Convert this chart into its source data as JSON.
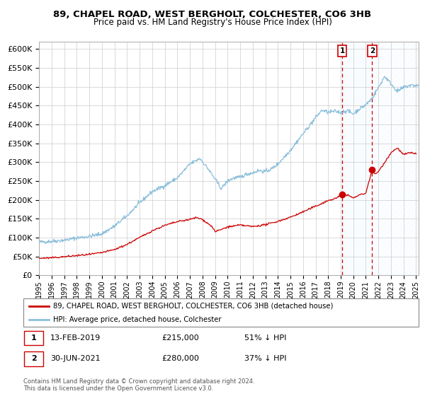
{
  "title": "89, CHAPEL ROAD, WEST BERGHOLT, COLCHESTER, CO6 3HB",
  "subtitle": "Price paid vs. HM Land Registry's House Price Index (HPI)",
  "legend_line1": "89, CHAPEL ROAD, WEST BERGHOLT, COLCHESTER, CO6 3HB (detached house)",
  "legend_line2": "HPI: Average price, detached house, Colchester",
  "footer": "Contains HM Land Registry data © Crown copyright and database right 2024.\nThis data is licensed under the Open Government Licence v3.0.",
  "hpi_color": "#8bbfdb",
  "price_color": "#cc0000",
  "shade_color": "#ddeeff",
  "grid_color": "#cccccc",
  "ylim": [
    0,
    620000
  ],
  "yticks": [
    0,
    50000,
    100000,
    150000,
    200000,
    250000,
    300000,
    350000,
    400000,
    450000,
    500000,
    550000,
    600000
  ],
  "sale1_x": 2019.12,
  "sale1_y": 215000,
  "sale2_x": 2021.5,
  "sale2_y": 280000,
  "xmin": 1995.0,
  "xmax": 2025.2
}
